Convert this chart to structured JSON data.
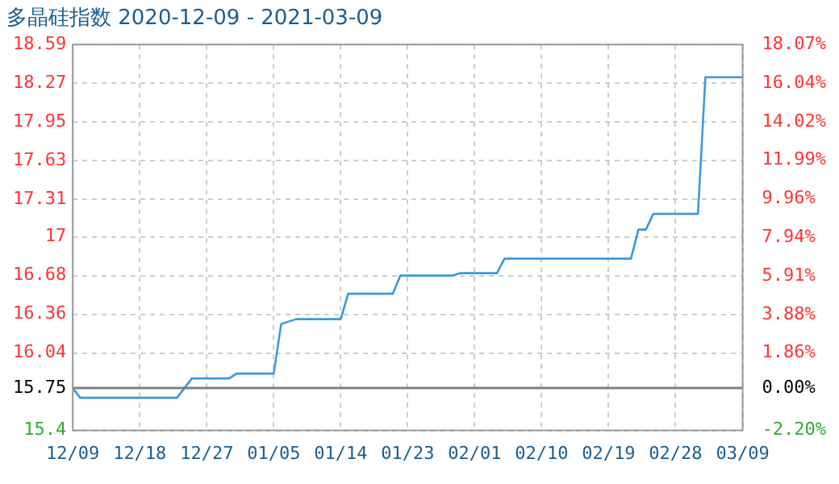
{
  "chart_data": {
    "type": "line",
    "title": "多晶硅指数 2020-12-09 - 2021-03-09",
    "x": [
      "2020-12-09",
      "2020-12-10",
      "2020-12-23",
      "2020-12-25",
      "2020-12-30",
      "2020-12-31",
      "2021-01-05",
      "2021-01-06",
      "2021-01-08",
      "2021-01-14",
      "2021-01-15",
      "2021-01-21",
      "2021-01-22",
      "2021-01-29",
      "2021-01-30",
      "2021-02-04",
      "2021-02-05",
      "2021-02-22",
      "2021-02-23",
      "2021-02-24",
      "2021-02-25",
      "2021-03-03",
      "2021-03-04",
      "2021-03-09"
    ],
    "series": [
      {
        "color": "#3a9ad9",
        "values": [
          15.75,
          15.67,
          15.67,
          15.83,
          15.83,
          15.87,
          15.87,
          16.28,
          16.32,
          16.32,
          16.53,
          16.53,
          16.68,
          16.68,
          16.7,
          16.7,
          16.82,
          16.82,
          17.06,
          17.06,
          17.19,
          17.19,
          18.32,
          18.32
        ]
      }
    ],
    "xlim": [
      "2020-12-09",
      "2021-03-09"
    ],
    "xticks": [
      {
        "value": "2020-12-09",
        "label": "12/09"
      },
      {
        "value": "2020-12-18",
        "label": "12/18"
      },
      {
        "value": "2020-12-27",
        "label": "12/27"
      },
      {
        "value": "2021-01-05",
        "label": "01/05"
      },
      {
        "value": "2021-01-14",
        "label": "01/14"
      },
      {
        "value": "2021-01-23",
        "label": "01/23"
      },
      {
        "value": "2021-02-01",
        "label": "02/01"
      },
      {
        "value": "2021-02-10",
        "label": "02/10"
      },
      {
        "value": "2021-02-19",
        "label": "02/19"
      },
      {
        "value": "2021-02-28",
        "label": "02/28"
      },
      {
        "value": "2021-03-09",
        "label": "03/09"
      }
    ],
    "ylim": [
      15.4,
      18.59
    ],
    "yticks": [
      15.4,
      15.75,
      16.04,
      16.36,
      16.68,
      17,
      17.31,
      17.63,
      17.95,
      18.27,
      18.59
    ],
    "y2lim": [
      -2.2,
      18.07
    ],
    "y2ticks": [
      {
        "value": -2.2,
        "label": "-2.20%"
      },
      {
        "value": 0,
        "label": "0.00%"
      },
      {
        "value": 1.86,
        "label": "1.86%"
      },
      {
        "value": 3.88,
        "label": "3.88%"
      },
      {
        "value": 5.91,
        "label": "5.91%"
      },
      {
        "value": 7.94,
        "label": "7.94%"
      },
      {
        "value": 9.96,
        "label": "9.96%"
      },
      {
        "value": 11.99,
        "label": "11.99%"
      },
      {
        "value": 14.02,
        "label": "14.02%"
      },
      {
        "value": 16.04,
        "label": "16.04%"
      },
      {
        "value": 18.07,
        "label": "18.07%"
      }
    ],
    "ref_lines": [
      {
        "axis": "y",
        "value": 15.75,
        "color": "#808080"
      }
    ],
    "grid": true,
    "legend": false,
    "marker": "none",
    "line_style": "solid"
  }
}
